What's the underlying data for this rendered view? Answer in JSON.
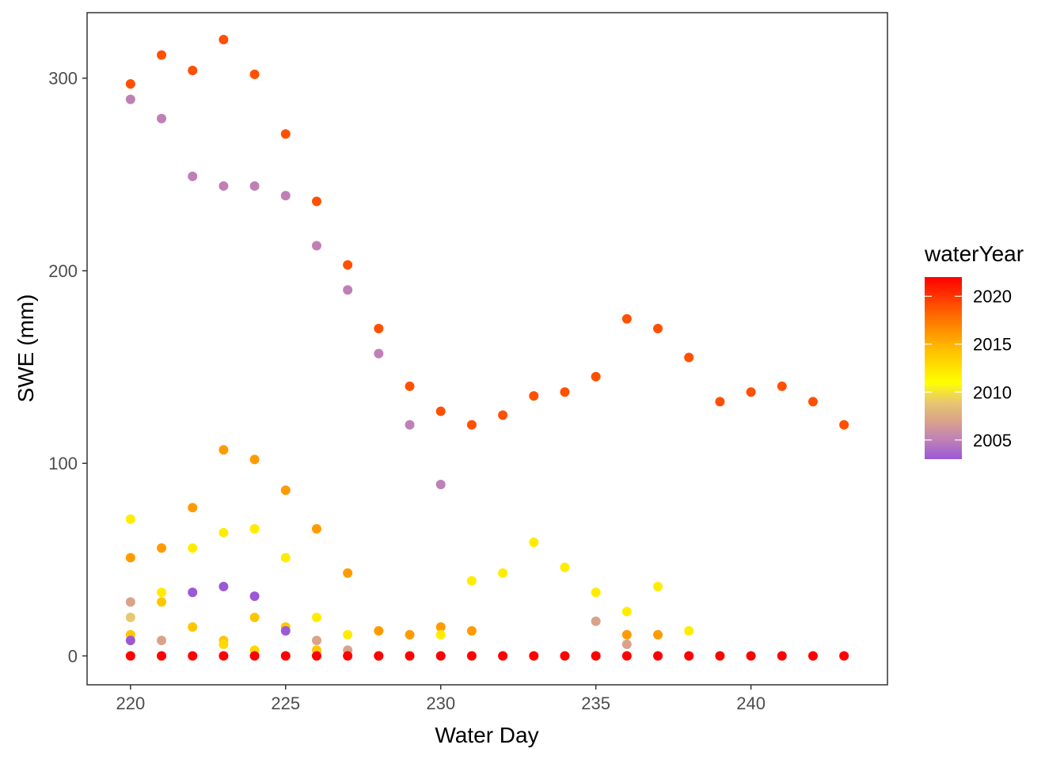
{
  "chart_data": {
    "type": "scatter",
    "xlabel": "Water Day",
    "ylabel": "SWE (mm)",
    "xlim": [
      218.6,
      244.4
    ],
    "ylim": [
      -15,
      334
    ],
    "x_ticks": [
      220,
      225,
      230,
      235,
      240
    ],
    "y_ticks": [
      0,
      100,
      200,
      300
    ],
    "x_tick_labels": [
      "220",
      "225",
      "230",
      "235",
      "240"
    ],
    "y_tick_labels": [
      "0",
      "100",
      "200",
      "300"
    ],
    "grid": false,
    "legend": {
      "title": "waterYear",
      "placement": "right",
      "range": [
        2003,
        2022
      ],
      "breaks": [
        2005,
        2010,
        2015,
        2020
      ],
      "labels": [
        "2005",
        "2010",
        "2015",
        "2020"
      ],
      "stops": [
        {
          "year": 2003,
          "color": "#9b59d6"
        },
        {
          "year": 2005,
          "color": "#bf80b8"
        },
        {
          "year": 2007,
          "color": "#d9a38a"
        },
        {
          "year": 2009,
          "color": "#e8c86e"
        },
        {
          "year": 2011,
          "color": "#ffff00"
        },
        {
          "year": 2015,
          "color": "#ffb300"
        },
        {
          "year": 2018,
          "color": "#ff6a00"
        },
        {
          "year": 2022,
          "color": "#ff0000"
        }
      ]
    },
    "series": [
      {
        "year": 2019,
        "points": [
          [
            220,
            297
          ],
          [
            221,
            312
          ],
          [
            222,
            304
          ],
          [
            223,
            320
          ],
          [
            224,
            302
          ],
          [
            225,
            271
          ],
          [
            226,
            236
          ],
          [
            227,
            203
          ],
          [
            228,
            170
          ],
          [
            229,
            140
          ],
          [
            230,
            127
          ],
          [
            231,
            120
          ],
          [
            232,
            125
          ],
          [
            233,
            135
          ],
          [
            234,
            137
          ],
          [
            235,
            145
          ],
          [
            236,
            175
          ],
          [
            237,
            170
          ],
          [
            238,
            155
          ],
          [
            239,
            132
          ],
          [
            240,
            137
          ],
          [
            241,
            140
          ],
          [
            242,
            132
          ],
          [
            243,
            120
          ]
        ]
      },
      {
        "year": 2005,
        "points": [
          [
            220,
            289
          ],
          [
            221,
            279
          ],
          [
            222,
            249
          ],
          [
            223,
            244
          ],
          [
            224,
            244
          ],
          [
            225,
            239
          ],
          [
            226,
            213
          ],
          [
            227,
            190
          ],
          [
            228,
            157
          ],
          [
            229,
            120
          ],
          [
            230,
            89
          ]
        ]
      },
      {
        "year": 2016,
        "points": [
          [
            220,
            51
          ],
          [
            221,
            56
          ],
          [
            222,
            77
          ],
          [
            223,
            107
          ],
          [
            224,
            102
          ],
          [
            225,
            86
          ],
          [
            226,
            66
          ],
          [
            227,
            43
          ],
          [
            228,
            13
          ],
          [
            229,
            11
          ],
          [
            230,
            15
          ],
          [
            231,
            13
          ],
          [
            236,
            11
          ],
          [
            237,
            11
          ]
        ]
      },
      {
        "year": 2012,
        "points": [
          [
            220,
            71
          ],
          [
            221,
            33
          ],
          [
            222,
            56
          ],
          [
            223,
            64
          ],
          [
            224,
            66
          ],
          [
            225,
            51
          ],
          [
            226,
            20
          ],
          [
            227,
            11
          ],
          [
            230,
            11
          ],
          [
            231,
            39
          ],
          [
            232,
            43
          ],
          [
            233,
            59
          ],
          [
            234,
            46
          ],
          [
            235,
            33
          ],
          [
            236,
            23
          ],
          [
            237,
            36
          ],
          [
            238,
            13
          ]
        ]
      },
      {
        "year": 2014,
        "points": [
          [
            220,
            11
          ],
          [
            221,
            28
          ],
          [
            222,
            15
          ],
          [
            223,
            8
          ],
          [
            224,
            20
          ],
          [
            225,
            15
          ],
          [
            226,
            3
          ],
          [
            228,
            0
          ]
        ]
      },
      {
        "year": 2003,
        "points": [
          [
            220,
            8
          ],
          [
            222,
            33
          ],
          [
            223,
            36
          ],
          [
            224,
            31
          ],
          [
            225,
            13
          ]
        ]
      },
      {
        "year": 2007,
        "points": [
          [
            220,
            28
          ],
          [
            221,
            8
          ],
          [
            226,
            8
          ],
          [
            227,
            3
          ],
          [
            235,
            18
          ],
          [
            236,
            6
          ]
        ]
      },
      {
        "year": 2009,
        "points": [
          [
            220,
            20
          ]
        ]
      },
      {
        "year": 2013,
        "points": [
          [
            223,
            6
          ],
          [
            224,
            3
          ]
        ]
      },
      {
        "year": 2022,
        "points": [
          [
            220,
            0
          ],
          [
            221,
            0
          ],
          [
            222,
            0
          ],
          [
            223,
            0
          ],
          [
            224,
            0
          ],
          [
            225,
            0
          ],
          [
            226,
            0
          ],
          [
            227,
            0
          ],
          [
            228,
            0
          ],
          [
            229,
            0
          ],
          [
            230,
            0
          ],
          [
            231,
            0
          ],
          [
            232,
            0
          ],
          [
            233,
            0
          ],
          [
            234,
            0
          ],
          [
            235,
            0
          ],
          [
            236,
            0
          ],
          [
            237,
            0
          ],
          [
            238,
            0
          ],
          [
            239,
            0
          ],
          [
            240,
            0
          ],
          [
            241,
            0
          ],
          [
            242,
            0
          ],
          [
            243,
            0
          ]
        ]
      }
    ]
  }
}
